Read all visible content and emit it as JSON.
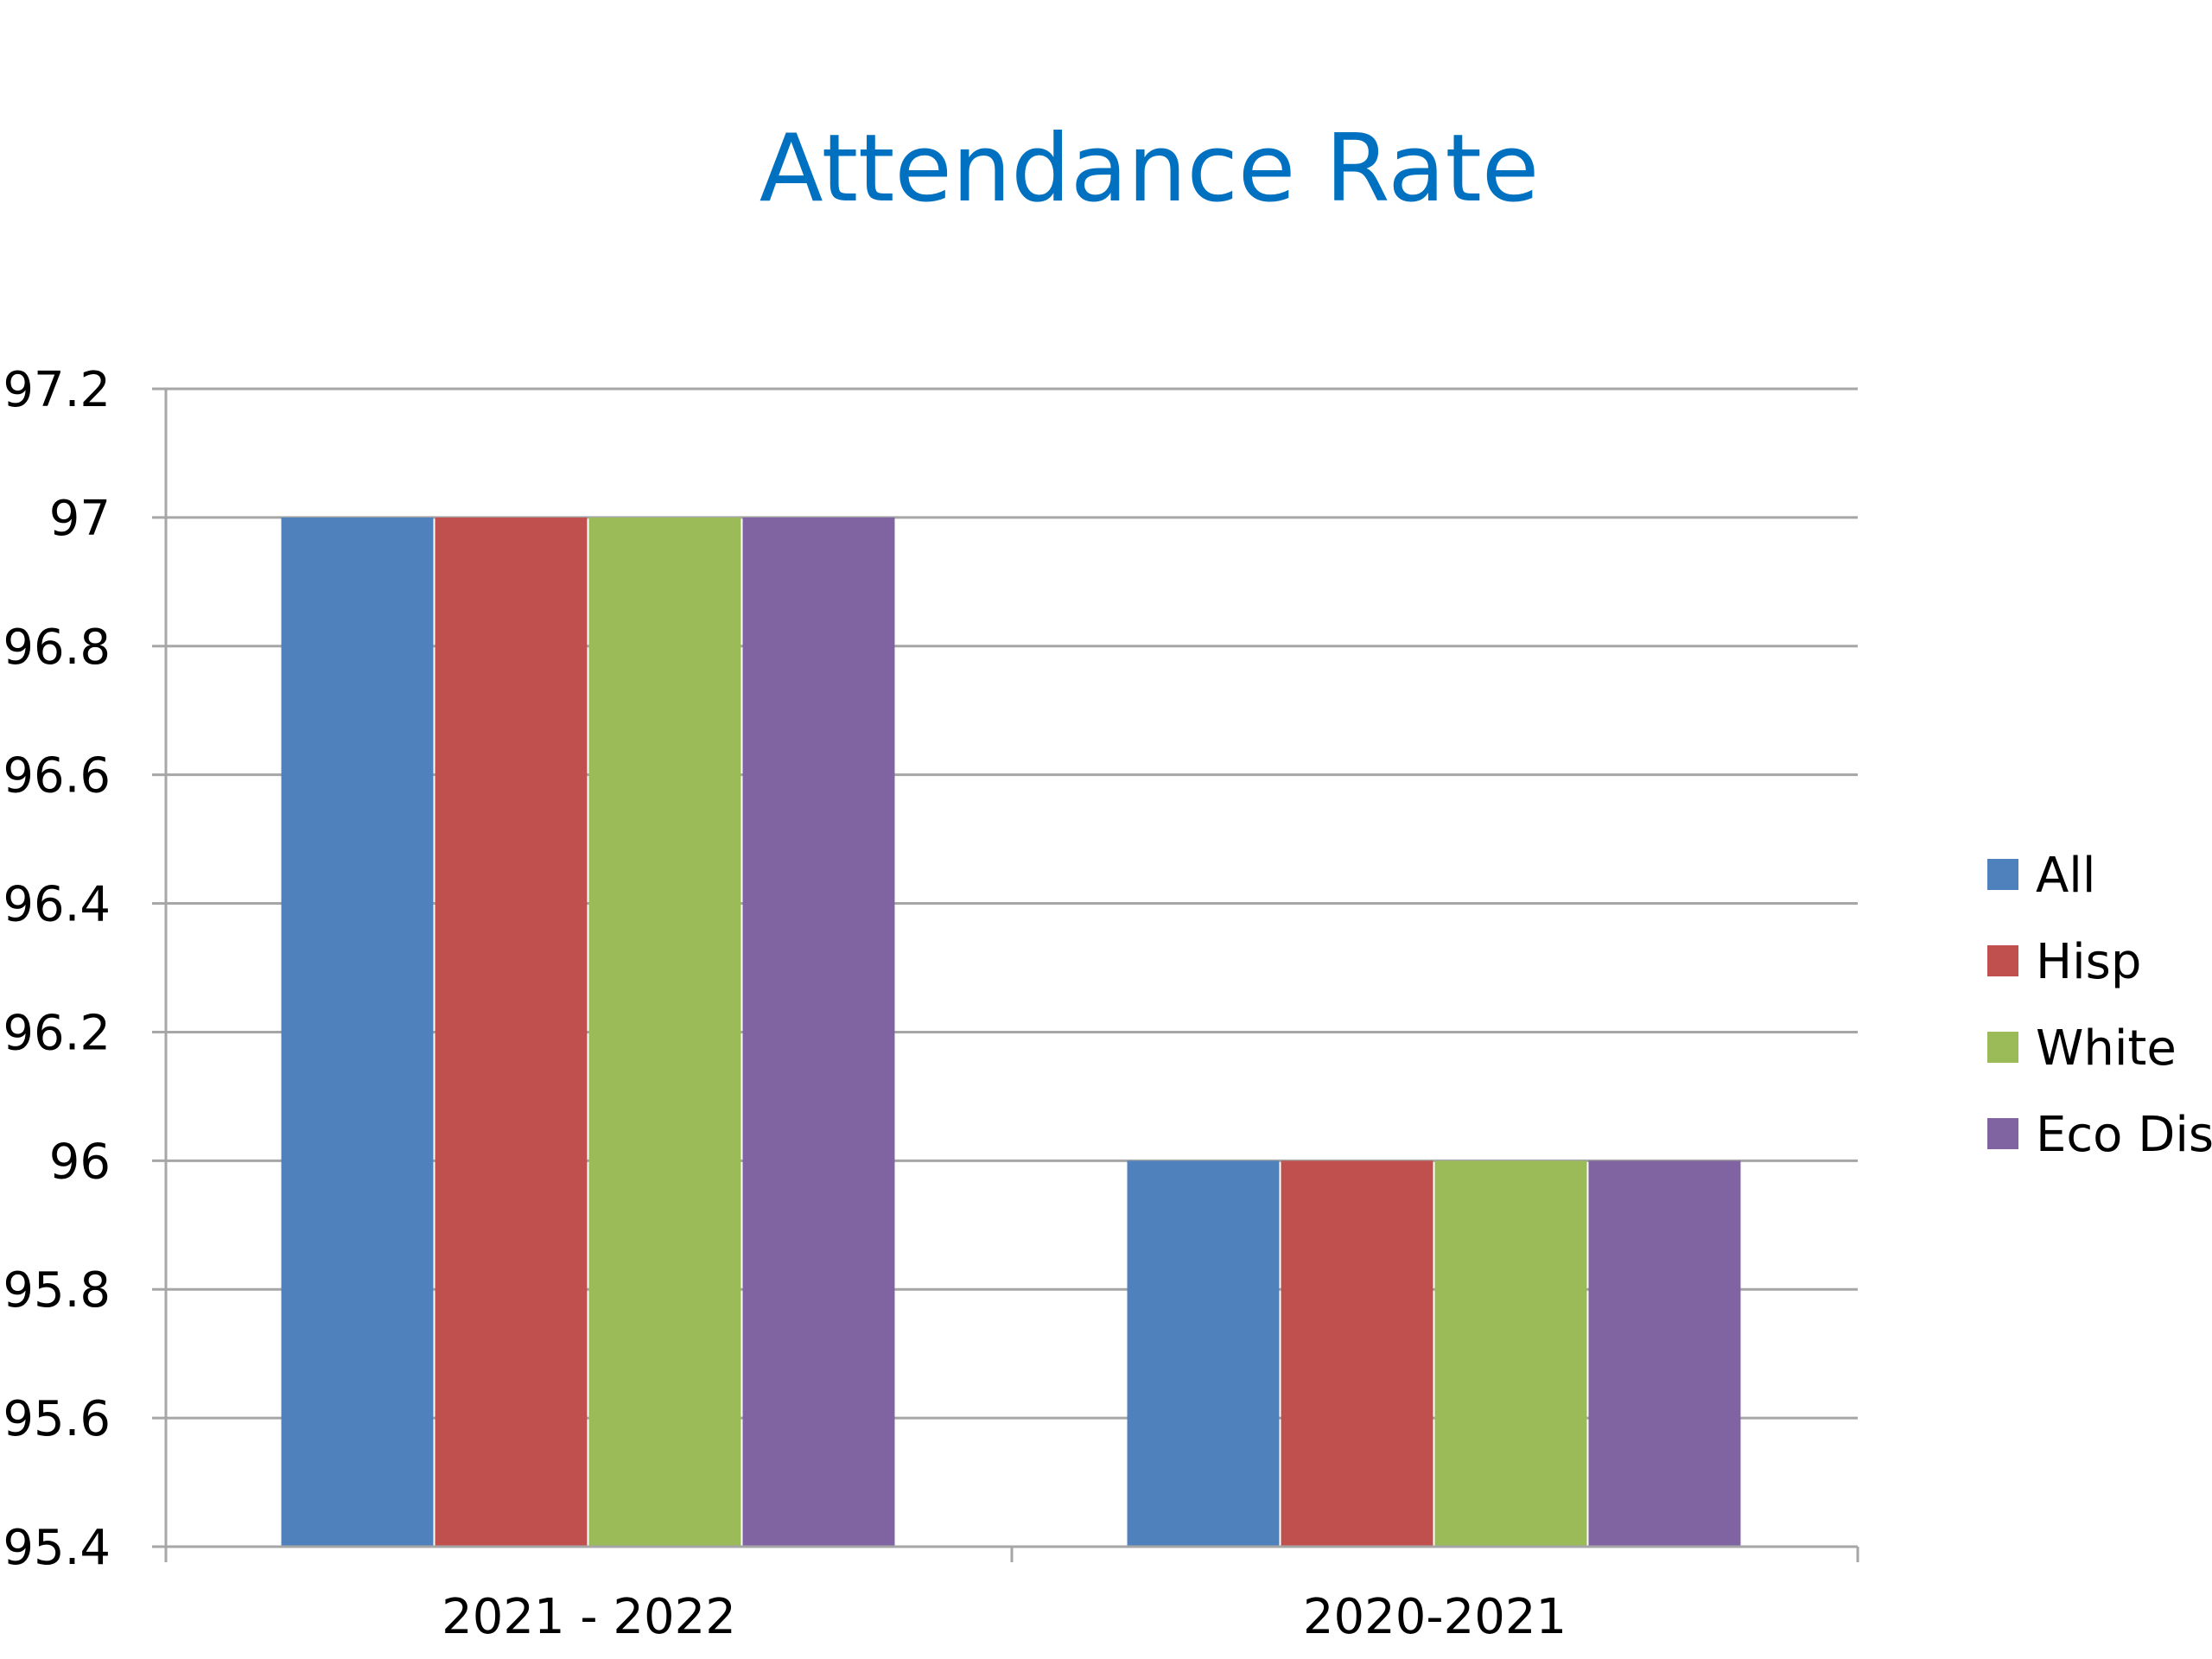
{
  "chart_data": {
    "type": "bar",
    "title": "Attendance Rate",
    "categories": [
      "2021 - 2022",
      "2020-2021"
    ],
    "series": [
      {
        "name": "All",
        "values": [
          97,
          96
        ],
        "color": "#4f81bd"
      },
      {
        "name": "Hisp",
        "values": [
          97,
          96
        ],
        "color": "#c0504d"
      },
      {
        "name": "White",
        "values": [
          97,
          96
        ],
        "color": "#9bbb59"
      },
      {
        "name": "Eco Dis",
        "values": [
          97,
          96
        ],
        "color": "#8064a2"
      }
    ],
    "ylim": [
      95.4,
      97.2
    ],
    "yticks": [
      "95.4",
      "95.6",
      "95.8",
      "96",
      "96.2",
      "96.4",
      "96.6",
      "96.8",
      "97",
      "97.2"
    ],
    "grid": true,
    "legend": "right"
  }
}
